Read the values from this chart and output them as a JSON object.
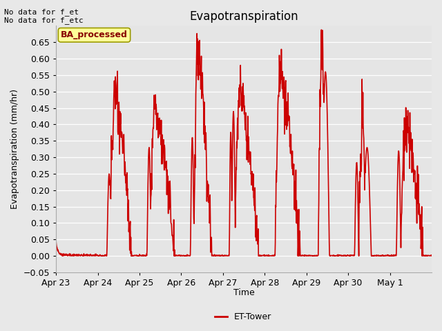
{
  "title": "Evapotranspiration",
  "ylabel": "Evapotranspiration (mm/hr)",
  "xlabel": "Time",
  "ylim": [
    -0.05,
    0.7
  ],
  "yticks": [
    -0.05,
    0.0,
    0.05,
    0.1,
    0.15,
    0.2,
    0.25,
    0.3,
    0.35,
    0.4,
    0.45,
    0.5,
    0.55,
    0.6,
    0.65
  ],
  "line_color": "#cc0000",
  "line_width": 1.2,
  "background_color": "#e8e8e8",
  "plot_bg_color": "#e5e5e5",
  "annotations": [
    "No data for f_et",
    "No data for f_etc"
  ],
  "legend_label": "ET-Tower",
  "legend_box_color": "#ffff99",
  "legend_box_edge": "#999900",
  "legend_text_color": "#880000",
  "title_fontsize": 12,
  "axis_fontsize": 9,
  "tick_fontsize": 9,
  "tick_labels": [
    "Apr 23",
    "Apr 24",
    "Apr 25",
    "Apr 26",
    "Apr 27",
    "Apr 28",
    "Apr 29",
    "Apr 30",
    "May 1"
  ],
  "n_days": 9
}
